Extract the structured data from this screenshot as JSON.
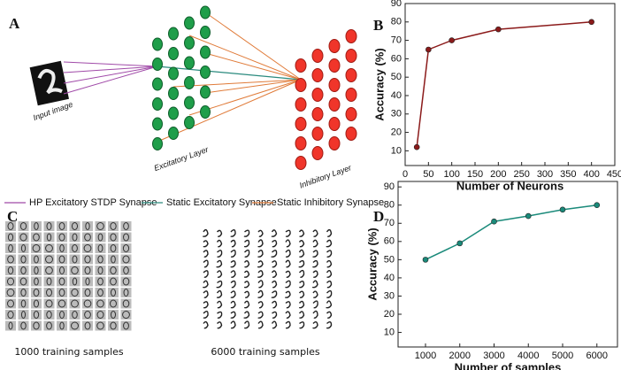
{
  "panels": {
    "a": "A",
    "b": "B",
    "c": "C",
    "d": "D"
  },
  "diagram": {
    "input_label": "Input image",
    "excitatory_label": "Excitatory Layer",
    "inhibitory_label": "Inhibitory Layer",
    "legend": [
      {
        "name": "HP Excitatory STDP Synapse",
        "color": "#a04aa8"
      },
      {
        "name": "Static Excitatory Synapse",
        "color": "#2a8a7e"
      },
      {
        "name": "Static Inhibitory Synapse",
        "color": "#e07b39"
      }
    ]
  },
  "samples": {
    "small": "1000 training samples",
    "large": "6000 training samples"
  },
  "chart_data": [
    {
      "type": "line",
      "xlabel": "Number of Neurons",
      "ylabel": "Accuracy (%)",
      "x": [
        25,
        50,
        100,
        200,
        400
      ],
      "series": [
        {
          "color": "#8b1a1a",
          "values": [
            12,
            65,
            70,
            76,
            80
          ]
        }
      ],
      "xlim": [
        0,
        450
      ],
      "xticks": [
        0,
        50,
        100,
        150,
        200,
        250,
        300,
        350,
        400,
        450
      ],
      "ylim": [
        2,
        90
      ],
      "yticks": [
        10,
        20,
        30,
        40,
        50,
        60,
        70,
        80,
        90
      ]
    },
    {
      "type": "line",
      "xlabel": "Number of samples",
      "ylabel": "Accuracy (%)",
      "x": [
        1000,
        2000,
        3000,
        4000,
        5000,
        6000
      ],
      "series": [
        {
          "color": "#1a8a7a",
          "values": [
            50,
            59,
            71,
            74,
            77.5,
            80
          ]
        }
      ],
      "xlim": [
        200,
        6600
      ],
      "xticks": [
        1000,
        2000,
        3000,
        4000,
        5000,
        6000
      ],
      "ylim": [
        2,
        93
      ],
      "yticks": [
        10,
        20,
        30,
        40,
        50,
        60,
        70,
        80,
        90
      ]
    }
  ]
}
